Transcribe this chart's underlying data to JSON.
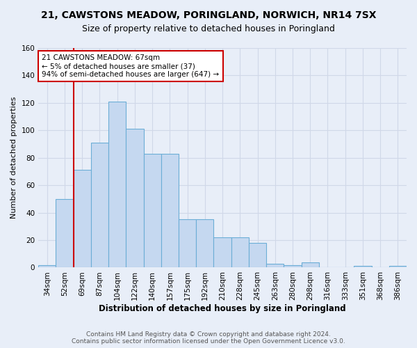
{
  "title": "21, CAWSTONS MEADOW, PORINGLAND, NORWICH, NR14 7SX",
  "subtitle": "Size of property relative to detached houses in Poringland",
  "xlabel": "Distribution of detached houses by size in Poringland",
  "ylabel": "Number of detached properties",
  "categories": [
    "34sqm",
    "52sqm",
    "69sqm",
    "87sqm",
    "104sqm",
    "122sqm",
    "140sqm",
    "157sqm",
    "175sqm",
    "192sqm",
    "210sqm",
    "228sqm",
    "245sqm",
    "263sqm",
    "280sqm",
    "298sqm",
    "316sqm",
    "333sqm",
    "351sqm",
    "368sqm",
    "386sqm"
  ],
  "values": [
    2,
    50,
    71,
    91,
    121,
    101,
    83,
    83,
    35,
    35,
    22,
    22,
    18,
    3,
    2,
    4,
    0,
    0,
    1,
    0,
    1
  ],
  "bar_color": "#c5d8f0",
  "bar_edge_color": "#6baed6",
  "red_line_x": 2,
  "annotation_title": "21 CAWSTONS MEADOW: 67sqm",
  "annotation_line1": "← 5% of detached houses are smaller (37)",
  "annotation_line2": "94% of semi-detached houses are larger (647) →",
  "annotation_box_color": "white",
  "annotation_box_edge_color": "#cc0000",
  "red_line_color": "#cc0000",
  "ylim": [
    0,
    160
  ],
  "yticks": [
    0,
    20,
    40,
    60,
    80,
    100,
    120,
    140,
    160
  ],
  "footer1": "Contains HM Land Registry data © Crown copyright and database right 2024.",
  "footer2": "Contains public sector information licensed under the Open Government Licence v3.0.",
  "bg_color": "#e8eef8",
  "grid_color": "#d0d8e8",
  "title_fontsize": 10,
  "subtitle_fontsize": 9,
  "footer_fontsize": 6.5
}
